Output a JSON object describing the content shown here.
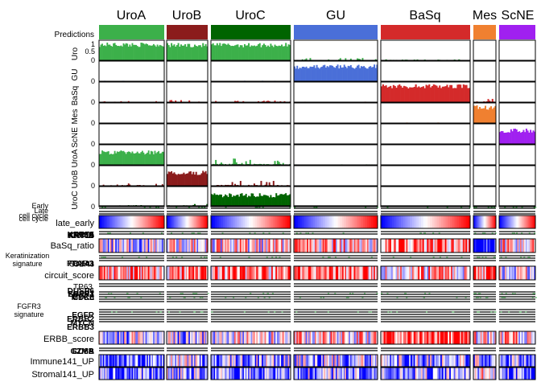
{
  "chart_data": {
    "type": "heatmap",
    "title": "",
    "groups": [
      {
        "name": "UroA",
        "color": "#3cb04a",
        "n": 52
      },
      {
        "name": "UroB",
        "color": "#8b1c1c",
        "n": 30
      },
      {
        "name": "UroC",
        "color": "#006400",
        "n": 58
      },
      {
        "name": "GU",
        "color": "#4a6fd8",
        "n": 64
      },
      {
        "name": "BaSq",
        "color": "#d42a2a",
        "n": 60
      },
      {
        "name": "Mes",
        "color": "#f08030",
        "n": 16
      },
      {
        "name": "ScNE",
        "color": "#a020f0",
        "n": 26
      }
    ],
    "predictions_label": "Predictions",
    "bar_rows": [
      {
        "label": "Uro",
        "class": "Uro",
        "tick_top": "1",
        "tick_mid": "0.5",
        "tick_bottom": "0",
        "color": "#3cb04a",
        "levels": {
          "UroA": 0.88,
          "UroB": 0.85,
          "UroC": 0.86,
          "GU": 0.05,
          "BaSq": 0.02,
          "Mes": 0.0,
          "ScNE": 0.0
        }
      },
      {
        "label": "GU",
        "class": "GU",
        "tick_top": "1",
        "tick_mid": "0.5",
        "tick_bottom": "0",
        "color": "#4a6fd8",
        "levels": {
          "UroA": 0.01,
          "UroB": 0.0,
          "UroC": 0.01,
          "GU": 0.82,
          "BaSq": 0.0,
          "Mes": 0.0,
          "ScNE": 0.0
        }
      },
      {
        "label": "BaSq",
        "class": "BaSq",
        "tick_top": "1",
        "tick_mid": "0.5",
        "tick_bottom": "0",
        "color": "#d42a2a",
        "levels": {
          "UroA": 0.02,
          "UroB": 0.04,
          "UroC": 0.03,
          "GU": 0.01,
          "BaSq": 0.9,
          "Mes": 0.1,
          "ScNE": 0.0
        }
      },
      {
        "label": "Mes",
        "class": "Mes",
        "tick_top": "1",
        "tick_mid": "0.5",
        "tick_bottom": "0",
        "color": "#f08030",
        "levels": {
          "UroA": 0.0,
          "UroB": 0.0,
          "UroC": 0.0,
          "GU": 0.0,
          "BaSq": 0.01,
          "Mes": 0.88,
          "ScNE": 0.0
        }
      },
      {
        "label": "ScNE",
        "class": "ScNE",
        "tick_top": "1",
        "tick_mid": "0.5",
        "tick_bottom": "0",
        "color": "#a020f0",
        "levels": {
          "UroA": 0.0,
          "UroB": 0.0,
          "UroC": 0.0,
          "GU": 0.0,
          "BaSq": 0.0,
          "Mes": 0.0,
          "ScNE": 0.75
        }
      },
      {
        "label": "UroA",
        "class": "UroA",
        "tick_top": "1",
        "tick_mid": "0.5",
        "tick_bottom": "0",
        "color": "#3cb04a",
        "levels": {
          "UroA": 0.7,
          "UroB": 0.01,
          "UroC": 0.12,
          "GU": 0.01,
          "BaSq": 0.0,
          "Mes": 0.0,
          "ScNE": 0.0
        }
      },
      {
        "label": "UroB",
        "class": "UroB",
        "tick_top": "1",
        "tick_mid": "0.5",
        "tick_bottom": "0",
        "color": "#8b1c1c",
        "levels": {
          "UroA": 0.05,
          "UroB": 0.72,
          "UroC": 0.1,
          "GU": 0.0,
          "BaSq": 0.0,
          "Mes": 0.0,
          "ScNE": 0.0
        }
      },
      {
        "label": "UroC",
        "class": "UroC",
        "tick_top": "1",
        "tick_mid": "0.5",
        "tick_bottom": "0",
        "color": "#006400",
        "levels": {
          "UroA": 0.03,
          "UroB": 0.05,
          "UroC": 0.65,
          "GU": 0.0,
          "BaSq": 0.0,
          "Mes": 0.0,
          "ScNE": 0.0
        }
      }
    ],
    "cell_cycle": {
      "section_labels": [
        "Early",
        "Late",
        "cell cycle",
        "cell cycle"
      ],
      "track": "late_early"
    },
    "keratinization": {
      "overlapping_labels": [
        "KRT5",
        "KRT14",
        "KRT6A",
        "KRT6B"
      ],
      "track": "BaSq_ratio",
      "section_labels": [
        "Keratinization",
        "signature"
      ],
      "circuit_labels": [
        "FOXA1",
        "GATA3",
        "PPARG",
        "CD44"
      ],
      "circuit_track": "circuit_score"
    },
    "fgfr3": {
      "section_labels": [
        "FGFR3",
        "signature"
      ],
      "top_labels": [
        "TP63",
        "FGFR3",
        "CDK6",
        "DUSP6",
        "SPRY1",
        "MYCL"
      ],
      "bottom_labels": [
        "EGFR",
        "ERBB2",
        "MYCN",
        "ERBB3"
      ],
      "track": "ERBB_score",
      "overlap_top": [
        "CD8A",
        "GZMB"
      ]
    },
    "immune_tracks": [
      "Immune141_UP",
      "Stromal141_UP"
    ],
    "colors": {
      "heat_low": "#0000ff",
      "heat_mid": "#ffffff",
      "heat_high": "#ff0000",
      "panel_border": "#000000",
      "thin_line": "#3cb04a"
    }
  }
}
